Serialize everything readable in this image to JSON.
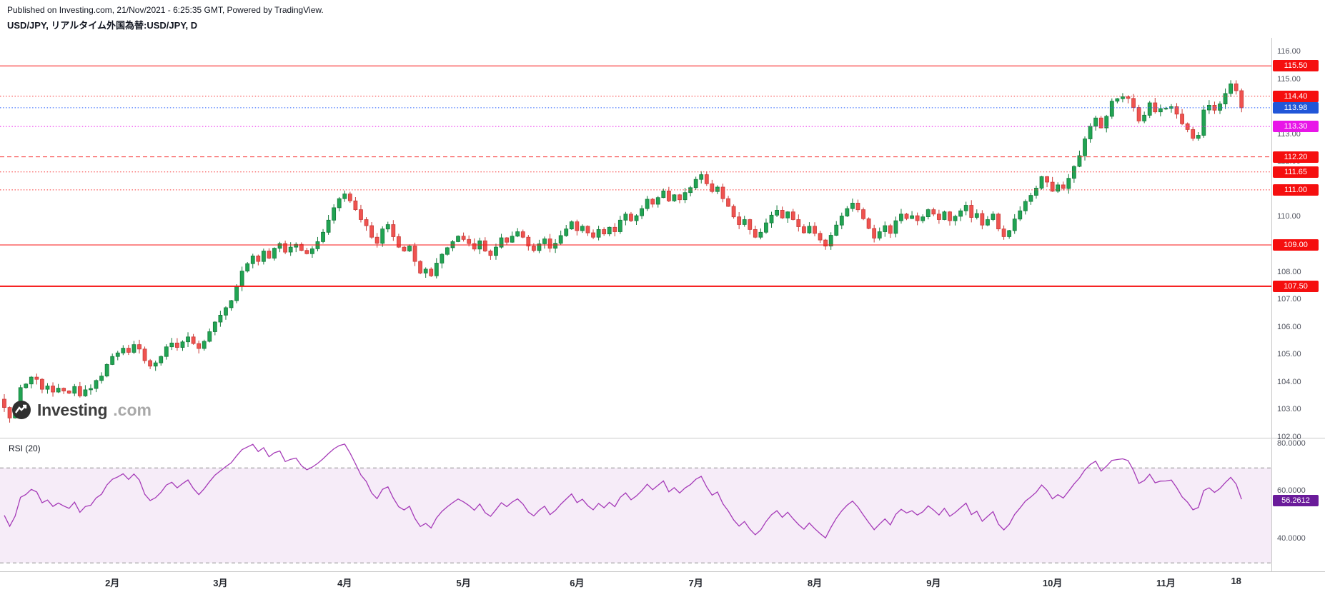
{
  "header": {
    "published_line": "Published on Investing.com, 21/Nov/2021 - 6:25:35 GMT, Powered by TradingView.",
    "symbol_line": "USD/JPY, リアルタイム外国為替:USD/JPY, D"
  },
  "watermark": {
    "brand_bold": "Investing",
    "brand_suffix": ".com"
  },
  "chart_data": {
    "type": "candlestick",
    "title": "USD/JPY, リアルタイム外国為替:USD/JPY, D",
    "symbol": "USD/JPY",
    "interval": "D",
    "first_open": 103.4,
    "closes": [
      103.1,
      102.72,
      103.05,
      103.82,
      103.95,
      104.2,
      104.12,
      103.76,
      103.88,
      103.66,
      103.8,
      103.7,
      103.62,
      103.86,
      103.52,
      103.74,
      103.79,
      104.08,
      104.24,
      104.66,
      104.95,
      105.08,
      105.25,
      105.1,
      105.38,
      105.22,
      104.8,
      104.6,
      104.72,
      104.95,
      105.3,
      105.44,
      105.28,
      105.48,
      105.66,
      105.42,
      105.24,
      105.5,
      105.85,
      106.2,
      106.45,
      106.72,
      106.98,
      107.5,
      108.05,
      108.32,
      108.6,
      108.4,
      108.78,
      108.52,
      108.88,
      109.05,
      108.74,
      108.92,
      109.02,
      108.8,
      108.68,
      108.86,
      109.12,
      109.46,
      109.9,
      110.35,
      110.68,
      110.85,
      110.6,
      110.28,
      109.92,
      109.7,
      109.28,
      109.06,
      109.58,
      109.74,
      109.3,
      108.92,
      108.78,
      108.96,
      108.4,
      107.98,
      108.12,
      107.88,
      108.34,
      108.66,
      108.9,
      109.12,
      109.32,
      109.2,
      109.05,
      108.85,
      109.15,
      108.78,
      108.62,
      108.92,
      109.26,
      109.1,
      109.32,
      109.48,
      109.28,
      108.96,
      108.8,
      109.04,
      109.22,
      108.88,
      109.06,
      109.34,
      109.58,
      109.84,
      109.52,
      109.68,
      109.44,
      109.28,
      109.56,
      109.4,
      109.64,
      109.48,
      109.9,
      110.12,
      109.88,
      110.06,
      110.32,
      110.66,
      110.48,
      110.72,
      110.96,
      110.6,
      110.82,
      110.64,
      110.9,
      111.08,
      111.38,
      111.55,
      111.22,
      110.94,
      111.1,
      110.68,
      110.4,
      110.02,
      109.74,
      109.92,
      109.56,
      109.28,
      109.46,
      109.8,
      110.08,
      110.26,
      109.98,
      110.2,
      109.92,
      109.66,
      109.44,
      109.68,
      109.42,
      109.18,
      108.96,
      109.35,
      109.72,
      110.05,
      110.32,
      110.52,
      110.28,
      109.95,
      109.6,
      109.25,
      109.48,
      109.7,
      109.42,
      109.88,
      110.12,
      109.96,
      110.06,
      109.88,
      110.02,
      110.28,
      110.12,
      109.92,
      110.2,
      109.88,
      110.04,
      110.24,
      110.44,
      110.0,
      110.14,
      109.72,
      109.92,
      110.12,
      109.58,
      109.3,
      109.52,
      109.94,
      110.24,
      110.58,
      110.8,
      111.06,
      111.48,
      111.28,
      110.95,
      111.18,
      111.05,
      111.42,
      111.85,
      112.24,
      112.85,
      113.31,
      113.61,
      113.25,
      113.67,
      114.22,
      114.31,
      114.38,
      114.32,
      113.99,
      113.5,
      113.71,
      114.16,
      113.83,
      113.95,
      113.96,
      114.02,
      113.75,
      113.4,
      113.19,
      112.87,
      112.98,
      113.9,
      114.07,
      113.89,
      114.12,
      114.5,
      114.85,
      114.6,
      113.98
    ],
    "colors": {
      "up": "#21a453",
      "up_border": "#147a3a",
      "down": "#ef5350",
      "down_border": "#c93a37"
    },
    "price_axis": {
      "visible_range": [
        102.0,
        116.5
      ],
      "tick_labels": [
        "116.00",
        "115.00",
        "114.00",
        "113.00",
        "112.00",
        "111.00",
        "110.00",
        "109.00",
        "108.00",
        "107.00",
        "106.00",
        "105.00",
        "104.00",
        "103.00",
        "102.00"
      ]
    },
    "levels": [
      {
        "price": 115.5,
        "label": "115.50",
        "line_color": "#f81414",
        "line_style": "solid",
        "line_width": 1,
        "label_bg": "#f50f0f"
      },
      {
        "price": 114.4,
        "label": "114.40",
        "line_color": "#f83030",
        "line_style": "dotted",
        "line_width": 1,
        "label_bg": "#f50f0f"
      },
      {
        "price": 113.98,
        "label": "113.98",
        "line_color": "#2962ff",
        "line_style": "dotted",
        "line_width": 1,
        "label_bg": "#2156d8"
      },
      {
        "price": 113.3,
        "label": "113.30",
        "line_color": "#ea1bea",
        "line_style": "dotted",
        "line_width": 1,
        "label_bg": "#e816e8"
      },
      {
        "price": 112.2,
        "label": "112.20",
        "line_color": "#f83030",
        "line_style": "dashed",
        "line_width": 1,
        "label_bg": "#f50f0f"
      },
      {
        "price": 111.65,
        "label": "111.65",
        "line_color": "#f83030",
        "line_style": "dotted",
        "line_width": 1,
        "label_bg": "#f50f0f"
      },
      {
        "price": 111.0,
        "label": "111.00",
        "line_color": "#f83030",
        "line_style": "dotted",
        "line_width": 1,
        "label_bg": "#f50f0f"
      },
      {
        "price": 109.0,
        "label": "109.00",
        "line_color": "#f81414",
        "line_style": "solid",
        "line_width": 1,
        "label_bg": "#f50f0f"
      },
      {
        "price": 107.5,
        "label": "107.50",
        "line_color": "#f50f0f",
        "line_style": "solid",
        "line_width": 2,
        "label_bg": "#f50f0f"
      }
    ],
    "x_axis": {
      "ticks": [
        {
          "label": "2月",
          "i": 20
        },
        {
          "label": "3月",
          "i": 40
        },
        {
          "label": "4月",
          "i": 63
        },
        {
          "label": "5月",
          "i": 85
        },
        {
          "label": "6月",
          "i": 106
        },
        {
          "label": "7月",
          "i": 128
        },
        {
          "label": "8月",
          "i": 150
        },
        {
          "label": "9月",
          "i": 172
        },
        {
          "label": "10月",
          "i": 194
        },
        {
          "label": "11月",
          "i": 215
        },
        {
          "label": "18",
          "i": 228
        }
      ]
    },
    "rsi": {
      "label": "RSI (20)",
      "period": 20,
      "value": 56.2612,
      "value_label": "56.2612",
      "upper_band": 70,
      "lower_band": 30,
      "ticks": [
        {
          "label": "80.0000",
          "value": 80
        },
        {
          "label": "60.0000",
          "value": 60
        },
        {
          "label": "40.0000",
          "value": 40
        }
      ],
      "line_color": "#9c27b0",
      "band_fill": "rgba(156,39,176,0.09)",
      "band_line_color": "#8f8f8f",
      "value_bg": "#6a1b9a"
    }
  }
}
